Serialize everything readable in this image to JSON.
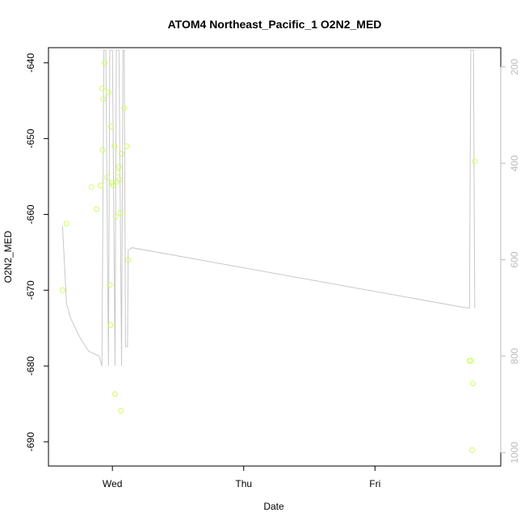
{
  "chart_data": {
    "type": "scatter",
    "title": "ATOM4 Northeast_Pacific_1 O2N2_MED",
    "xlabel": "Date",
    "ylabel": "O2N2_MED",
    "x_ticks": [
      {
        "label": "Wed",
        "value": 1.0
      },
      {
        "label": "Thu",
        "value": 2.0
      },
      {
        "label": "Fri",
        "value": 3.0
      }
    ],
    "xlim": [
      0.513,
      3.958
    ],
    "y_ticks": [
      -690,
      -680,
      -670,
      -660,
      -650,
      -640
    ],
    "ylim": [
      -693.2,
      -638.0
    ],
    "y2_ticks": [
      200,
      400,
      600,
      800,
      1000
    ],
    "y2lim": [
      1028,
      160
    ],
    "grid": false,
    "points_color": "#ccff66",
    "line_color": "#c8c8c8",
    "axis_right_color": "#bbbbbb",
    "points": [
      [
        0.62,
        -670.0
      ],
      [
        0.65,
        -661.2
      ],
      [
        0.84,
        -656.4
      ],
      [
        0.88,
        -659.3
      ],
      [
        0.91,
        -656.2
      ],
      [
        0.92,
        -643.4
      ],
      [
        0.925,
        -651.5
      ],
      [
        0.93,
        -644.8
      ],
      [
        0.94,
        -640.0
      ],
      [
        0.96,
        -655.1
      ],
      [
        0.97,
        -643.9
      ],
      [
        0.98,
        -669.3
      ],
      [
        0.985,
        -674.6
      ],
      [
        0.99,
        -648.4
      ],
      [
        1.0,
        -655.8
      ],
      [
        1.005,
        -656.2
      ],
      [
        1.015,
        -651.0
      ],
      [
        1.02,
        -683.7
      ],
      [
        1.025,
        -660.3
      ],
      [
        1.03,
        -655.7
      ],
      [
        1.04,
        -654.5
      ],
      [
        1.05,
        -653.7
      ],
      [
        1.055,
        -655.4
      ],
      [
        1.06,
        -659.8
      ],
      [
        1.065,
        -685.9
      ],
      [
        1.07,
        -652.0
      ],
      [
        1.09,
        -646.0
      ],
      [
        1.11,
        -651.0
      ],
      [
        1.12,
        -666.0
      ],
      [
        3.72,
        -679.3
      ],
      [
        3.73,
        -679.3
      ],
      [
        3.74,
        -691.1
      ],
      [
        3.745,
        -682.3
      ],
      [
        3.76,
        -653.0
      ]
    ],
    "line_series_y2": [
      [
        0.62,
        530
      ],
      [
        0.65,
        690
      ],
      [
        0.68,
        720
      ],
      [
        0.75,
        760
      ],
      [
        0.82,
        790
      ],
      [
        0.9,
        800
      ],
      [
        0.92,
        820
      ],
      [
        0.935,
        165
      ],
      [
        0.95,
        165
      ],
      [
        0.97,
        820
      ],
      [
        0.98,
        165
      ],
      [
        1.0,
        165
      ],
      [
        1.02,
        820
      ],
      [
        1.03,
        165
      ],
      [
        1.05,
        165
      ],
      [
        1.07,
        820
      ],
      [
        1.08,
        165
      ],
      [
        1.09,
        165
      ],
      [
        1.1,
        780
      ],
      [
        1.115,
        780
      ],
      [
        1.12,
        580
      ],
      [
        1.15,
        575
      ],
      [
        3.7,
        700
      ],
      [
        3.72,
        700
      ],
      [
        3.73,
        165
      ],
      [
        3.75,
        165
      ],
      [
        3.76,
        700
      ]
    ]
  }
}
